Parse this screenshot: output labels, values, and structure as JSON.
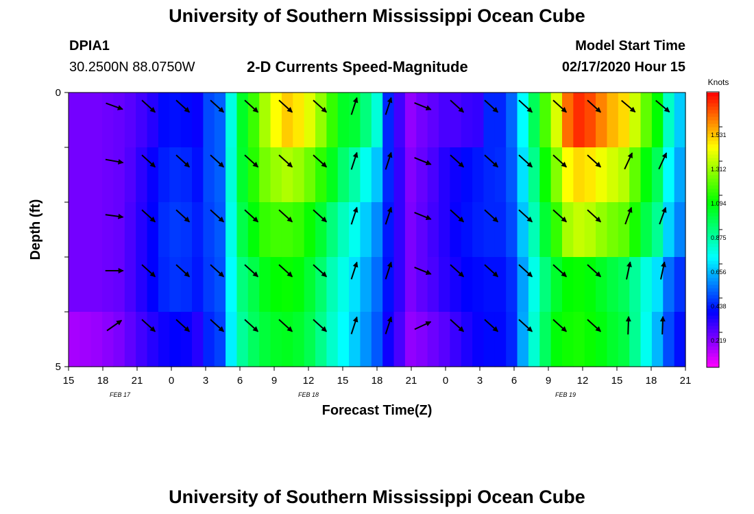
{
  "page": {
    "title_top": "University of Southern Mississippi Ocean Cube",
    "title_bottom": "University of Southern Mississippi Ocean Cube",
    "station_id": "DPIA1",
    "station_coords": "30.2500N 88.0750W",
    "plot_title": "2-D Currents Speed-Magnitude",
    "model_label": "Model Start Time",
    "model_time": "02/17/2020 Hour 15"
  },
  "chart_data": {
    "type": "heatmap",
    "title": "2-D Currents Speed-Magnitude",
    "xlabel": "Forecast Time(Z)",
    "ylabel": "Depth (ft)",
    "colorbar_title": "Knots",
    "colorbar_ticks": [
      "0.219",
      "0.438",
      "0.656",
      "0.875",
      "1.094",
      "1.312",
      "1.531"
    ],
    "colorbar_tick_values": [
      0.219,
      0.438,
      0.656,
      0.875,
      1.094,
      1.312,
      1.531
    ],
    "vmin": 0.0,
    "vmax": 1.75,
    "xlim": [
      0,
      54
    ],
    "ylim": [
      0,
      5
    ],
    "x_tick_labels": [
      "15",
      "18",
      "21",
      "0",
      "3",
      "6",
      "9",
      "12",
      "15",
      "18",
      "21",
      "0",
      "3",
      "6",
      "9",
      "12",
      "15",
      "18",
      "21"
    ],
    "y_tick_labels": [
      "0",
      "5"
    ],
    "date_labels": [
      {
        "text": "FEB 17",
        "hour": 4.5
      },
      {
        "text": "FEB 18",
        "hour": 21
      },
      {
        "text": "FEB 19",
        "hour": 43.5
      }
    ],
    "depth_layers": 5,
    "speed_knots": [
      [
        0.19,
        0.19,
        0.19,
        0.2,
        0.21,
        0.23,
        0.26,
        0.3,
        0.36,
        0.37,
        0.36,
        0.34,
        0.45,
        0.48,
        0.74,
        1.0,
        1.13,
        1.28,
        1.4,
        1.47,
        1.43,
        1.36,
        1.25,
        1.12,
        1.0,
        0.98,
        0.88,
        0.75,
        0.4,
        0.26,
        0.15,
        0.19,
        0.22,
        0.25,
        0.25,
        0.27,
        0.28,
        0.4,
        0.4,
        0.49,
        0.7,
        0.93,
        1.15,
        1.35,
        1.6,
        1.69,
        1.65,
        1.57,
        1.5,
        1.45,
        1.33,
        1.18,
        1.05,
        0.78,
        0.63
      ],
      [
        0.19,
        0.19,
        0.19,
        0.2,
        0.21,
        0.24,
        0.29,
        0.34,
        0.39,
        0.41,
        0.4,
        0.37,
        0.45,
        0.48,
        0.75,
        0.99,
        1.1,
        1.21,
        1.26,
        1.29,
        1.26,
        1.2,
        1.11,
        1.01,
        0.9,
        0.82,
        0.72,
        0.62,
        0.4,
        0.28,
        0.17,
        0.21,
        0.25,
        0.3,
        0.33,
        0.36,
        0.38,
        0.4,
        0.41,
        0.47,
        0.66,
        0.86,
        1.06,
        1.23,
        1.4,
        1.45,
        1.43,
        1.38,
        1.34,
        1.3,
        1.18,
        1.04,
        0.93,
        0.7,
        0.58
      ],
      [
        0.19,
        0.19,
        0.19,
        0.2,
        0.21,
        0.25,
        0.3,
        0.35,
        0.41,
        0.43,
        0.42,
        0.39,
        0.44,
        0.47,
        0.73,
        0.95,
        1.04,
        1.12,
        1.14,
        1.14,
        1.12,
        1.06,
        0.98,
        0.88,
        0.79,
        0.72,
        0.63,
        0.54,
        0.38,
        0.28,
        0.18,
        0.22,
        0.26,
        0.3,
        0.34,
        0.37,
        0.39,
        0.4,
        0.4,
        0.45,
        0.62,
        0.8,
        0.98,
        1.12,
        1.28,
        1.32,
        1.3,
        1.25,
        1.21,
        1.18,
        1.08,
        0.95,
        0.85,
        0.64,
        0.53
      ],
      [
        0.19,
        0.19,
        0.19,
        0.2,
        0.21,
        0.25,
        0.3,
        0.35,
        0.4,
        0.42,
        0.41,
        0.38,
        0.43,
        0.46,
        0.7,
        0.88,
        0.95,
        1.02,
        1.05,
        1.06,
        1.04,
        0.98,
        0.9,
        0.8,
        0.73,
        0.66,
        0.58,
        0.5,
        0.37,
        0.28,
        0.18,
        0.22,
        0.25,
        0.29,
        0.32,
        0.35,
        0.36,
        0.37,
        0.37,
        0.41,
        0.57,
        0.73,
        0.88,
        0.99,
        1.05,
        1.06,
        1.04,
        1.0,
        0.96,
        0.93,
        0.84,
        0.74,
        0.66,
        0.5,
        0.42
      ],
      [
        0.12,
        0.13,
        0.14,
        0.16,
        0.18,
        0.22,
        0.26,
        0.3,
        0.33,
        0.35,
        0.34,
        0.3,
        0.4,
        0.44,
        0.68,
        0.84,
        0.92,
        0.97,
        1.0,
        1.01,
        0.99,
        0.94,
        0.86,
        0.77,
        0.7,
        0.63,
        0.55,
        0.47,
        0.33,
        0.25,
        0.15,
        0.17,
        0.2,
        0.23,
        0.27,
        0.31,
        0.34,
        0.36,
        0.36,
        0.4,
        0.58,
        0.76,
        0.92,
        1.04,
        1.07,
        1.08,
        1.06,
        1.03,
        0.99,
        0.96,
        0.85,
        0.72,
        0.6,
        0.45,
        0.37
      ]
    ]
  }
}
